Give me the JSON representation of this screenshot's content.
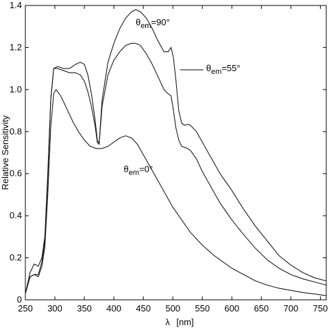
{
  "chart_data": {
    "type": "line",
    "xlabel_symbol": "λ",
    "xlabel_unit": "[nm]",
    "ylabel": "Relative Sensitivity",
    "xlim": [
      250,
      760
    ],
    "ylim": [
      0,
      1.4
    ],
    "xticks": [
      250,
      300,
      350,
      400,
      450,
      500,
      550,
      600,
      650,
      700,
      750
    ],
    "yticks": [
      0,
      0.2,
      0.4,
      0.6,
      0.8,
      1.0,
      1.2,
      1.4
    ],
    "ytick_labels": [
      "0",
      "0.2",
      "0.4",
      "0.6",
      "0.8",
      "1.0",
      "1.2",
      "1.4"
    ],
    "grid": false,
    "legend": "none",
    "series": [
      {
        "name": "θem=90°",
        "label_parts": [
          "θ",
          "em",
          "=90°"
        ],
        "label_at": [
          437,
          1.37
        ],
        "points": [
          [
            250,
            0.03
          ],
          [
            258,
            0.13
          ],
          [
            265,
            0.17
          ],
          [
            272,
            0.16
          ],
          [
            278,
            0.2
          ],
          [
            283,
            0.3
          ],
          [
            288,
            0.6
          ],
          [
            293,
            0.95
          ],
          [
            298,
            1.1
          ],
          [
            305,
            1.11
          ],
          [
            315,
            1.1
          ],
          [
            325,
            1.1
          ],
          [
            335,
            1.12
          ],
          [
            343,
            1.13
          ],
          [
            350,
            1.12
          ],
          [
            356,
            1.07
          ],
          [
            362,
            0.98
          ],
          [
            368,
            0.86
          ],
          [
            372,
            0.76
          ],
          [
            375,
            0.74
          ],
          [
            380,
            0.95
          ],
          [
            390,
            1.13
          ],
          [
            400,
            1.22
          ],
          [
            410,
            1.29
          ],
          [
            420,
            1.34
          ],
          [
            430,
            1.37
          ],
          [
            437,
            1.38
          ],
          [
            445,
            1.37
          ],
          [
            455,
            1.34
          ],
          [
            465,
            1.29
          ],
          [
            475,
            1.23
          ],
          [
            485,
            1.18
          ],
          [
            492,
            1.18
          ],
          [
            497,
            1.2
          ],
          [
            501,
            1.15
          ],
          [
            505,
            1.05
          ],
          [
            510,
            0.9
          ],
          [
            515,
            0.84
          ],
          [
            520,
            0.83
          ],
          [
            525,
            0.835
          ],
          [
            530,
            0.83
          ],
          [
            540,
            0.8
          ],
          [
            550,
            0.75
          ],
          [
            560,
            0.7
          ],
          [
            570,
            0.65
          ],
          [
            580,
            0.6
          ],
          [
            590,
            0.56
          ],
          [
            600,
            0.52
          ],
          [
            620,
            0.43
          ],
          [
            640,
            0.35
          ],
          [
            660,
            0.28
          ],
          [
            680,
            0.21
          ],
          [
            700,
            0.165
          ],
          [
            720,
            0.13
          ],
          [
            740,
            0.105
          ],
          [
            760,
            0.09
          ]
        ]
      },
      {
        "name": "θem=55°",
        "label_parts": [
          "θ",
          "em",
          "=55°"
        ],
        "label_at": [
          510,
          1.12
        ],
        "points": [
          [
            250,
            0.03
          ],
          [
            258,
            0.11
          ],
          [
            265,
            0.12
          ],
          [
            272,
            0.12
          ],
          [
            278,
            0.18
          ],
          [
            283,
            0.28
          ],
          [
            288,
            0.58
          ],
          [
            293,
            0.95
          ],
          [
            298,
            1.1
          ],
          [
            305,
            1.1
          ],
          [
            315,
            1.09
          ],
          [
            325,
            1.08
          ],
          [
            335,
            1.08
          ],
          [
            343,
            1.07
          ],
          [
            350,
            1.04
          ],
          [
            356,
            0.99
          ],
          [
            362,
            0.92
          ],
          [
            368,
            0.83
          ],
          [
            372,
            0.75
          ],
          [
            375,
            0.74
          ],
          [
            380,
            0.92
          ],
          [
            390,
            1.07
          ],
          [
            400,
            1.14
          ],
          [
            410,
            1.18
          ],
          [
            420,
            1.21
          ],
          [
            430,
            1.22
          ],
          [
            437,
            1.22
          ],
          [
            445,
            1.21
          ],
          [
            455,
            1.17
          ],
          [
            465,
            1.12
          ],
          [
            475,
            1.06
          ],
          [
            485,
            1.0
          ],
          [
            492,
            0.98
          ],
          [
            497,
            0.97
          ],
          [
            501,
            0.9
          ],
          [
            505,
            0.82
          ],
          [
            510,
            0.76
          ],
          [
            515,
            0.73
          ],
          [
            520,
            0.725
          ],
          [
            525,
            0.72
          ],
          [
            530,
            0.71
          ],
          [
            540,
            0.67
          ],
          [
            550,
            0.61
          ],
          [
            560,
            0.56
          ],
          [
            570,
            0.51
          ],
          [
            580,
            0.46
          ],
          [
            590,
            0.42
          ],
          [
            600,
            0.38
          ],
          [
            620,
            0.31
          ],
          [
            640,
            0.245
          ],
          [
            660,
            0.19
          ],
          [
            680,
            0.15
          ],
          [
            700,
            0.12
          ],
          [
            720,
            0.1
          ],
          [
            740,
            0.085
          ],
          [
            760,
            0.07
          ]
        ]
      },
      {
        "name": "θem=0°",
        "label_parts": [
          "θ",
          "em",
          "=0°"
        ],
        "label_at": [
          440,
          0.62
        ],
        "points": [
          [
            250,
            0.03
          ],
          [
            258,
            0.11
          ],
          [
            265,
            0.12
          ],
          [
            272,
            0.11
          ],
          [
            278,
            0.16
          ],
          [
            283,
            0.25
          ],
          [
            288,
            0.5
          ],
          [
            293,
            0.82
          ],
          [
            298,
            0.98
          ],
          [
            302,
            1.0
          ],
          [
            310,
            0.97
          ],
          [
            320,
            0.91
          ],
          [
            330,
            0.85
          ],
          [
            340,
            0.8
          ],
          [
            350,
            0.76
          ],
          [
            360,
            0.73
          ],
          [
            370,
            0.72
          ],
          [
            380,
            0.72
          ],
          [
            390,
            0.73
          ],
          [
            400,
            0.75
          ],
          [
            410,
            0.77
          ],
          [
            420,
            0.78
          ],
          [
            430,
            0.77
          ],
          [
            440,
            0.74
          ],
          [
            450,
            0.69
          ],
          [
            460,
            0.64
          ],
          [
            470,
            0.59
          ],
          [
            480,
            0.54
          ],
          [
            490,
            0.49
          ],
          [
            500,
            0.44
          ],
          [
            510,
            0.4
          ],
          [
            520,
            0.36
          ],
          [
            530,
            0.32
          ],
          [
            540,
            0.29
          ],
          [
            550,
            0.26
          ],
          [
            560,
            0.235
          ],
          [
            570,
            0.21
          ],
          [
            580,
            0.19
          ],
          [
            590,
            0.17
          ],
          [
            600,
            0.15
          ],
          [
            620,
            0.12
          ],
          [
            640,
            0.09
          ],
          [
            660,
            0.07
          ],
          [
            680,
            0.055
          ],
          [
            700,
            0.045
          ],
          [
            720,
            0.035
          ],
          [
            740,
            0.028
          ],
          [
            760,
            0.02
          ]
        ]
      }
    ]
  }
}
